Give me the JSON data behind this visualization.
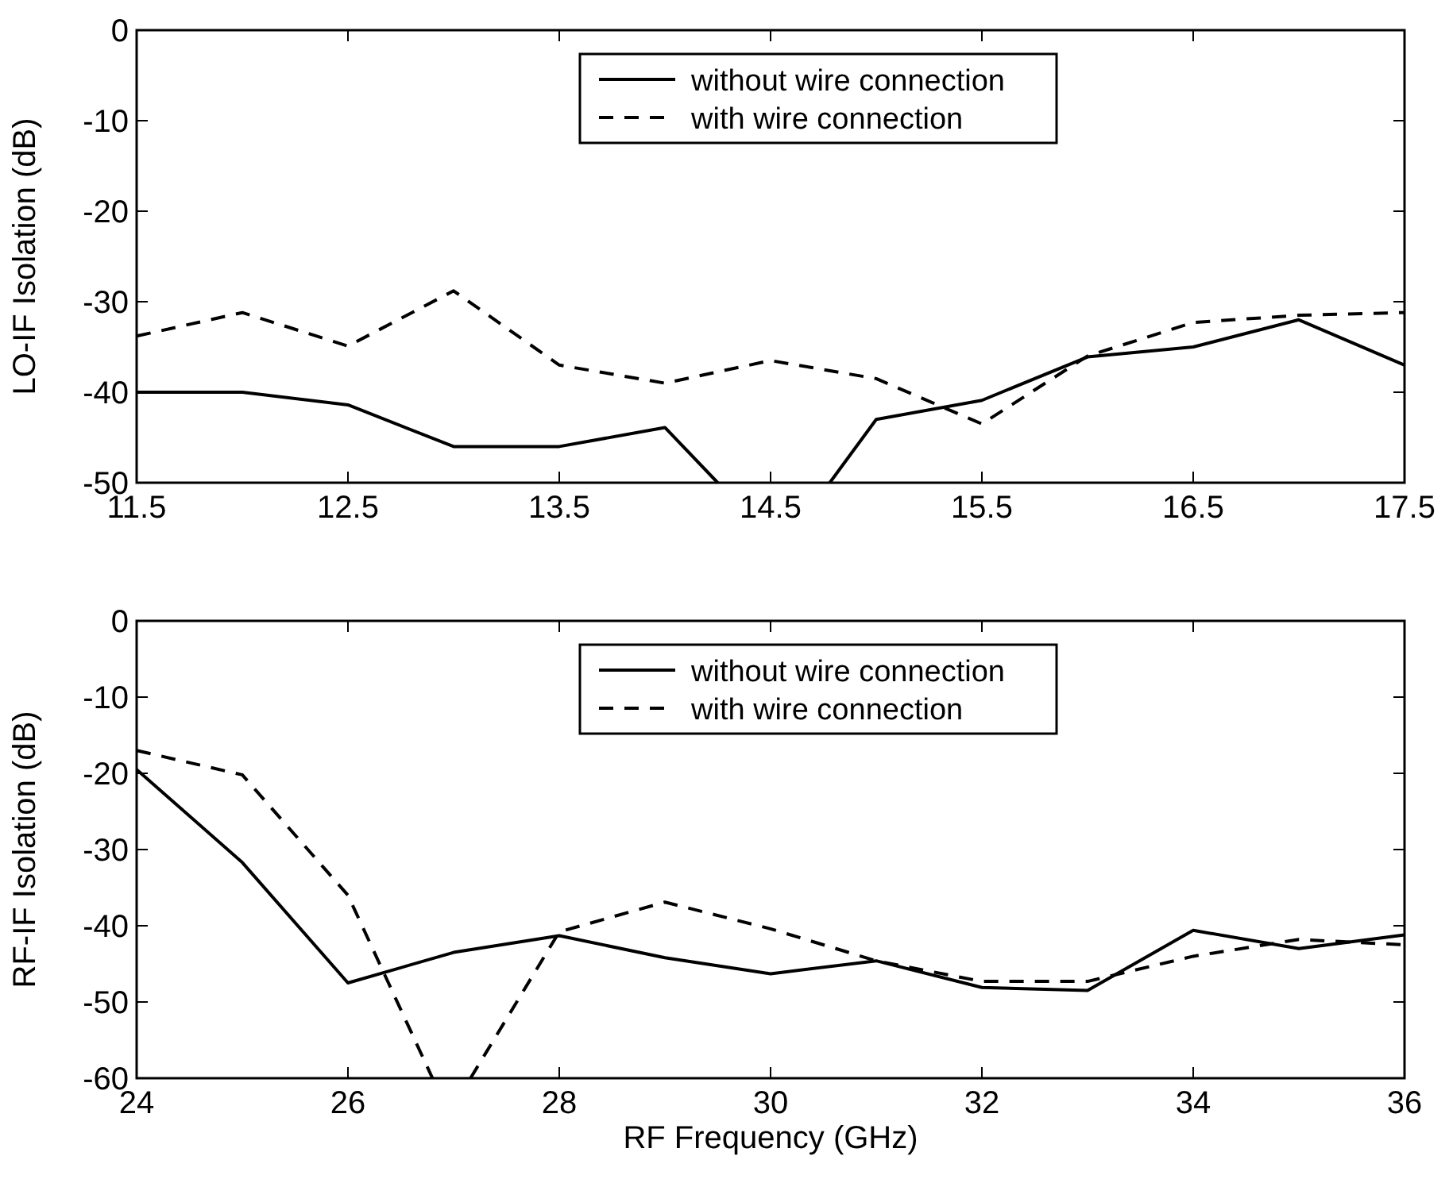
{
  "chart_data": [
    {
      "type": "line",
      "ylabel": "LO-IF Isolation (dB)",
      "xlim": [
        11.5,
        17.5
      ],
      "xticks": [
        11.5,
        12.5,
        13.5,
        14.5,
        15.5,
        16.5,
        17.5
      ],
      "ylim": [
        -50,
        0
      ],
      "yticks": [
        -50,
        -40,
        -30,
        -20,
        -10,
        0
      ],
      "legend": "top",
      "grid": false,
      "series": [
        {
          "name": "without wire connection",
          "color": "#000000",
          "line_style": "solid",
          "x": [
            11.5,
            12,
            12.5,
            13,
            13.5,
            14,
            14.25,
            14.5,
            14.78,
            15,
            15.5,
            16,
            16.5,
            17,
            17.5
          ],
          "values": [
            -40,
            -40,
            -41.4,
            -46,
            -46,
            -43.9,
            -50,
            null,
            -50,
            -43,
            -40.9,
            -36.1,
            -35,
            -32,
            -37
          ]
        },
        {
          "name": "with wire connection",
          "color": "#000000",
          "line_style": "dashed",
          "x": [
            11.5,
            12,
            12.5,
            13,
            13.5,
            14,
            14.5,
            15,
            15.5,
            16,
            16.5,
            17,
            17.5
          ],
          "values": [
            -33.8,
            -31.2,
            -34.9,
            -28.8,
            -37,
            -39,
            -36.5,
            -38.5,
            -43.5,
            -36,
            -32.3,
            -31.5,
            -31.2
          ]
        }
      ]
    },
    {
      "type": "line",
      "xlabel": "RF Frequency (GHz)",
      "ylabel": "RF-IF Isolation (dB)",
      "xlim": [
        24,
        36
      ],
      "xticks": [
        24,
        26,
        28,
        30,
        32,
        34,
        36
      ],
      "ylim": [
        -60,
        0
      ],
      "yticks": [
        -60,
        -50,
        -40,
        -30,
        -20,
        -10,
        0
      ],
      "legend": "top",
      "grid": false,
      "series": [
        {
          "name": "without wire connection",
          "color": "#000000",
          "line_style": "solid",
          "x": [
            24,
            25,
            26,
            27,
            28,
            29,
            30,
            31,
            32,
            33,
            34,
            35,
            36
          ],
          "values": [
            -19.5,
            -31.7,
            -47.5,
            -43.5,
            -41.3,
            -44.2,
            -46.3,
            -44.6,
            -48.1,
            -48.5,
            -40.6,
            -43,
            -41.2
          ]
        },
        {
          "name": "with wire connection",
          "color": "#000000",
          "line_style": "dashed",
          "x": [
            24,
            25,
            26,
            26.8,
            27,
            27.16,
            28,
            29,
            30,
            31,
            32,
            33,
            34,
            35,
            36
          ],
          "values": [
            -17,
            -20.2,
            -36,
            -60,
            null,
            -60,
            -40.8,
            -36.9,
            -40.4,
            -44.6,
            -47.3,
            -47.3,
            -44,
            -41.8,
            -42.5
          ]
        }
      ]
    }
  ]
}
